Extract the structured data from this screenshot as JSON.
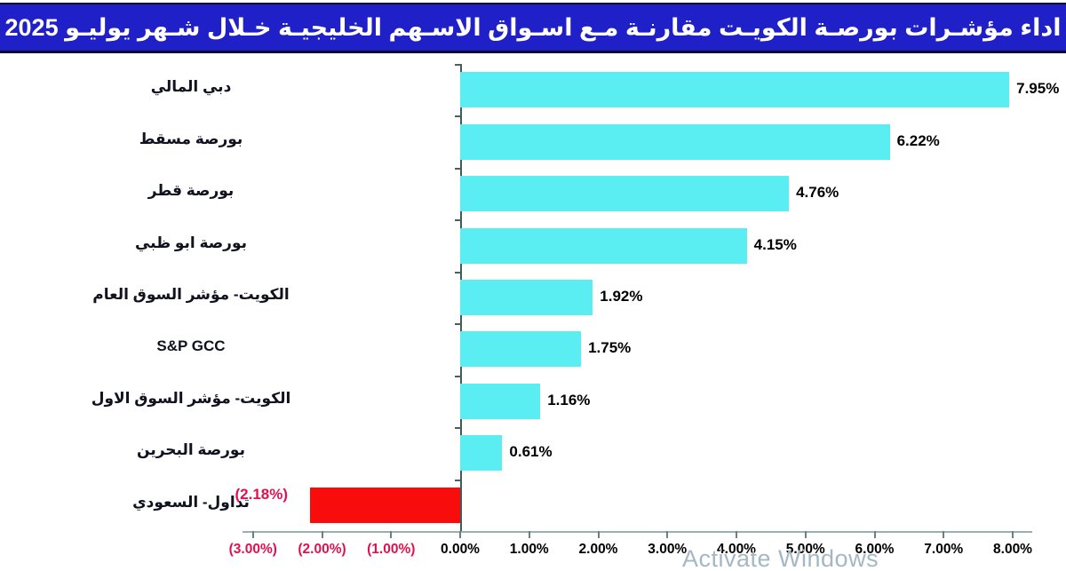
{
  "title": "اداء مؤشـرات بورصـة الكويـت مقارنـة مـع اسـواق الاسـهم الخليجيـة خـلال شـهر يوليـو 2025",
  "watermark": "Activate Windows",
  "colors": {
    "title_bg": "#2020C8",
    "title_text": "#FFFFFF",
    "bar_positive": "#5AEDF2",
    "bar_negative": "#F80C0C",
    "negative_text": "#E0114E",
    "axis_line": "#9AB0AC"
  },
  "chart_data": {
    "type": "bar",
    "orientation": "horizontal",
    "title": "اداء مؤشرات بورصة الكويت مقارنة مع اسواق الاسهم الخليجية خلال شهر يوليو 2025",
    "categories": [
      "دبي المالي",
      "بورصة مسقط",
      "بورصة قطر",
      "بورصة ابو ظبي",
      "الكويت- مؤشر السوق العام",
      "S&P GCC",
      "الكويت- مؤشر السوق الاول",
      "بورصة البحرين",
      "تداول- السعودي"
    ],
    "values": [
      7.95,
      6.22,
      4.76,
      4.15,
      1.92,
      1.75,
      1.16,
      0.61,
      -2.18
    ],
    "value_labels": [
      "7.95%",
      "6.22%",
      "4.76%",
      "4.15%",
      "1.92%",
      "1.75%",
      "1.16%",
      "0.61%",
      "(2.18%)"
    ],
    "x_ticks": [
      "(3.00%)",
      "(2.00%)",
      "(1.00%)",
      "0.00%",
      "1.00%",
      "2.00%",
      "3.00%",
      "4.00%",
      "5.00%",
      "6.00%",
      "7.00%",
      "8.00%"
    ],
    "x_tick_values": [
      -3,
      -2,
      -1,
      0,
      1,
      2,
      3,
      4,
      5,
      6,
      7,
      8
    ],
    "xlim": [
      -3,
      8
    ],
    "grid": false,
    "legend": false
  }
}
